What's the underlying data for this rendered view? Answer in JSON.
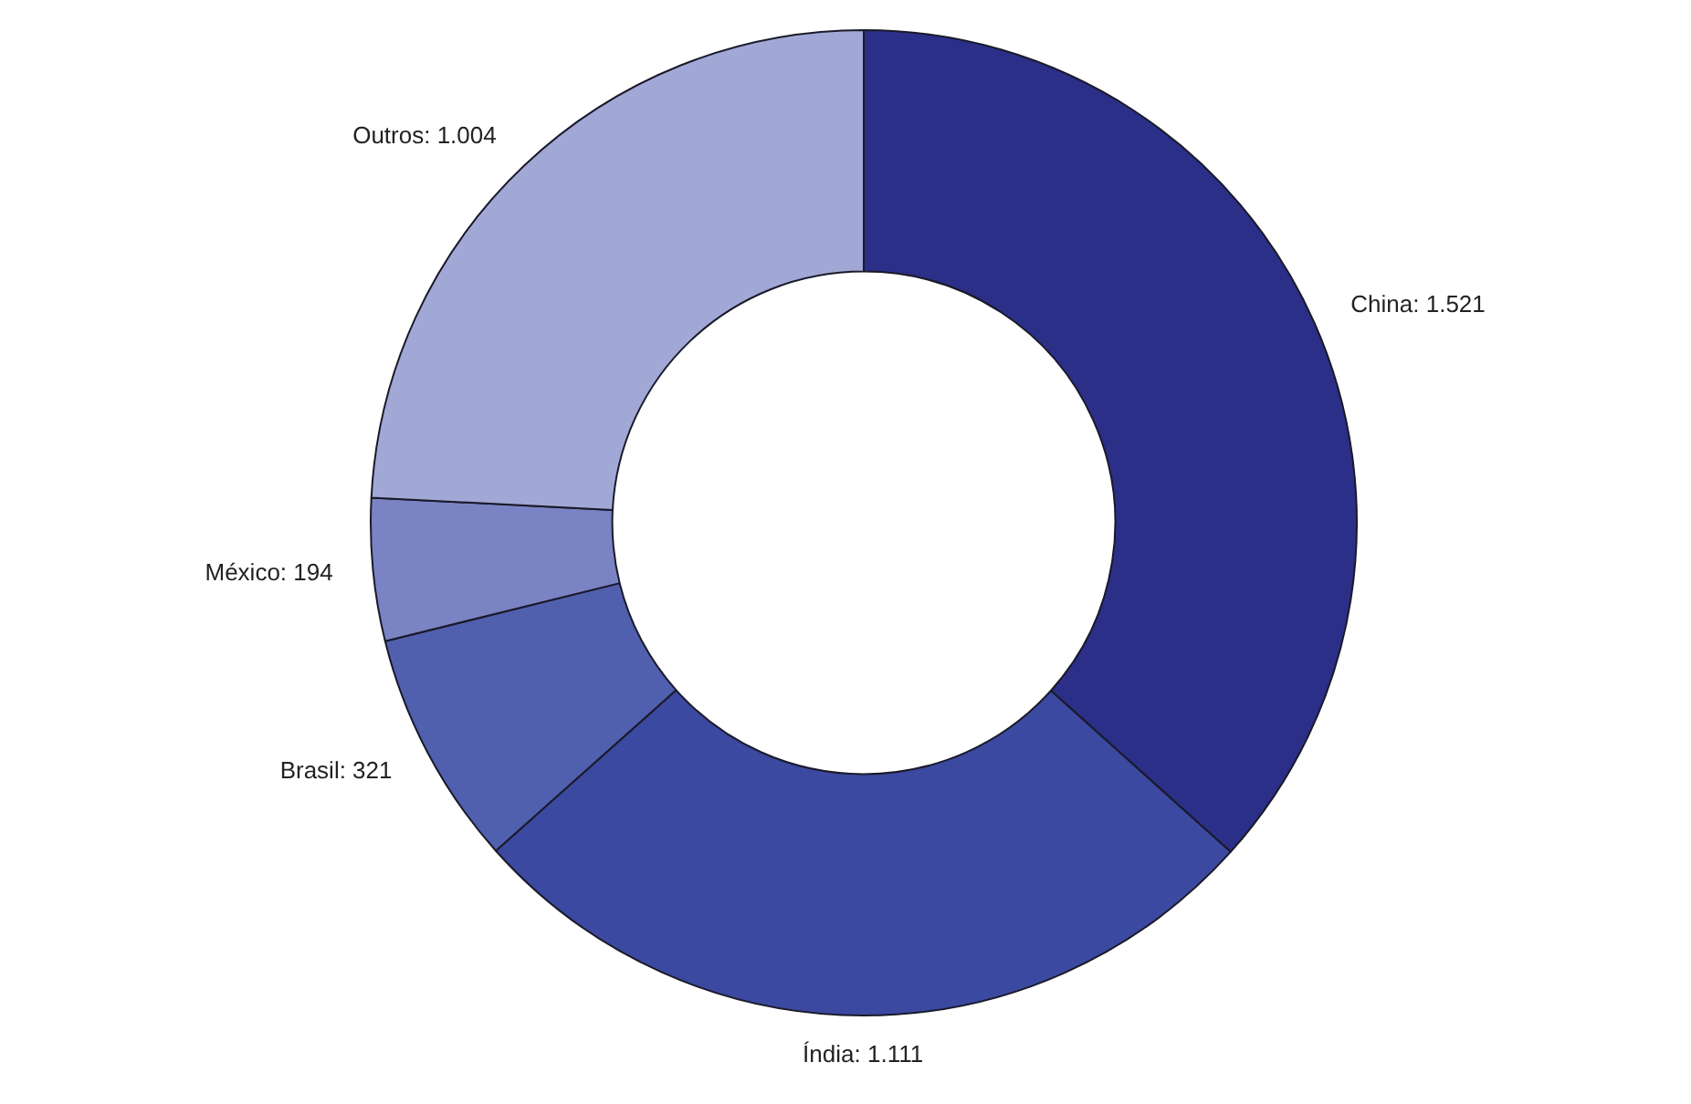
{
  "chart_data": {
    "type": "donut",
    "categories": [
      "China",
      "Índia",
      "Brasil",
      "México",
      "Outros"
    ],
    "values": [
      1521,
      1111,
      321,
      194,
      1004
    ],
    "value_labels": [
      "1.521",
      "1.111",
      "321",
      "194",
      "1.004"
    ],
    "colors": [
      "#2b2f88",
      "#3c49a0",
      "#5060ae",
      "#7a84c4",
      "#a2a8d6"
    ],
    "legend": false
  }
}
